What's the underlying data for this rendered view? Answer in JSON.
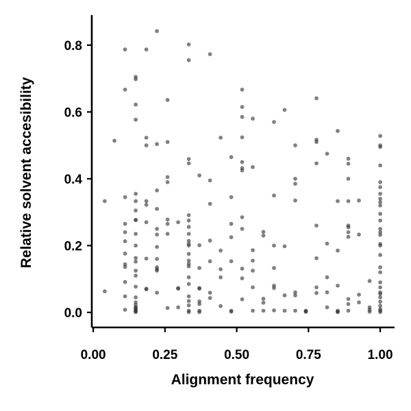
{
  "chart_data": {
    "type": "scatter",
    "title": "",
    "xlabel": "Alignment frequency",
    "ylabel": "Relative solvent accesibility",
    "xlim": [
      -0.005,
      1.05
    ],
    "ylim": [
      -0.045,
      0.89
    ],
    "xticks": [
      0.0,
      0.25,
      0.5,
      0.75,
      1.0
    ],
    "xtick_labels": [
      "0.00",
      "0.25",
      "0.50",
      "0.75",
      "1.00"
    ],
    "yticks": [
      0.0,
      0.2,
      0.4,
      0.6,
      0.8
    ],
    "ytick_labels": [
      "0.0",
      "0.2",
      "0.4",
      "0.6",
      "0.8"
    ],
    "grid": false,
    "legend": "none",
    "point_color": "#333333",
    "point_opacity": 0.62,
    "x": [
      0.04,
      0.04,
      0.074,
      0.111,
      0.111,
      0.111,
      0.111,
      0.111,
      0.111,
      0.111,
      0.111,
      0.111,
      0.111,
      0.111,
      0.111,
      0.148,
      0.148,
      0.148,
      0.148,
      0.148,
      0.148,
      0.148,
      0.148,
      0.148,
      0.148,
      0.148,
      0.148,
      0.148,
      0.148,
      0.148,
      0.148,
      0.148,
      0.148,
      0.148,
      0.148,
      0.148,
      0.148,
      0.148,
      0.148,
      0.148,
      0.185,
      0.185,
      0.185,
      0.185,
      0.185,
      0.185,
      0.185,
      0.185,
      0.185,
      0.222,
      0.222,
      0.222,
      0.222,
      0.222,
      0.222,
      0.222,
      0.222,
      0.222,
      0.222,
      0.222,
      0.222,
      0.259,
      0.259,
      0.259,
      0.259,
      0.259,
      0.259,
      0.259,
      0.259,
      0.296,
      0.296,
      0.296,
      0.296,
      0.333,
      0.333,
      0.333,
      0.333,
      0.333,
      0.333,
      0.333,
      0.333,
      0.333,
      0.333,
      0.333,
      0.333,
      0.333,
      0.333,
      0.333,
      0.333,
      0.333,
      0.333,
      0.333,
      0.333,
      0.333,
      0.333,
      0.37,
      0.37,
      0.37,
      0.37,
      0.37,
      0.37,
      0.37,
      0.37,
      0.37,
      0.407,
      0.407,
      0.407,
      0.407,
      0.407,
      0.407,
      0.407,
      0.444,
      0.444,
      0.444,
      0.444,
      0.444,
      0.481,
      0.481,
      0.481,
      0.481,
      0.481,
      0.481,
      0.481,
      0.519,
      0.519,
      0.519,
      0.519,
      0.519,
      0.519,
      0.519,
      0.519,
      0.519,
      0.519,
      0.519,
      0.519,
      0.556,
      0.556,
      0.556,
      0.556,
      0.556,
      0.556,
      0.556,
      0.593,
      0.593,
      0.593,
      0.593,
      0.593,
      0.63,
      0.63,
      0.63,
      0.63,
      0.63,
      0.63,
      0.63,
      0.667,
      0.667,
      0.667,
      0.667,
      0.704,
      0.704,
      0.704,
      0.704,
      0.704,
      0.704,
      0.704,
      0.741,
      0.741,
      0.741,
      0.778,
      0.778,
      0.778,
      0.778,
      0.778,
      0.778,
      0.778,
      0.778,
      0.815,
      0.815,
      0.815,
      0.815,
      0.815,
      0.852,
      0.852,
      0.852,
      0.852,
      0.852,
      0.852,
      0.852,
      0.889,
      0.889,
      0.889,
      0.889,
      0.889,
      0.889,
      0.889,
      0.889,
      0.889,
      0.889,
      0.889,
      0.926,
      0.926,
      0.926,
      0.926,
      0.963,
      0.963,
      0.963,
      0.963,
      1.0,
      1.0,
      1.0,
      1.0,
      1.0,
      1.0,
      1.0,
      1.0,
      1.0,
      1.0,
      1.0,
      1.0,
      1.0,
      1.0,
      1.0,
      1.0,
      1.0,
      1.0,
      1.0,
      1.0,
      1.0,
      1.0,
      1.0,
      1.0,
      1.0,
      1.0,
      1.0,
      1.0,
      1.0,
      1.0
    ],
    "y": [
      0.333,
      0.063,
      0.514,
      0.787,
      0.667,
      0.345,
      0.265,
      0.24,
      0.213,
      0.176,
      0.144,
      0.136,
      0.091,
      0.048,
      0.008,
      0.705,
      0.698,
      0.622,
      0.577,
      0.355,
      0.333,
      0.305,
      0.277,
      0.276,
      0.235,
      0.2,
      0.163,
      0.152,
      0.125,
      0.11,
      0.077,
      0.045,
      0.03,
      0.022,
      0.015,
      0.013,
      0.01,
      0.005,
      0.003,
      0.001,
      0.787,
      0.523,
      0.5,
      0.333,
      0.322,
      0.27,
      0.161,
      0.071,
      0.069,
      0.842,
      0.504,
      0.365,
      0.31,
      0.25,
      0.233,
      0.196,
      0.16,
      0.135,
      0.129,
      0.125,
      0.059,
      0.636,
      0.51,
      0.405,
      0.39,
      0.278,
      0.265,
      0.235,
      0.013,
      0.27,
      0.073,
      0.071,
      0.015,
      0.802,
      0.755,
      0.459,
      0.446,
      0.291,
      0.275,
      0.256,
      0.235,
      0.214,
      0.205,
      0.2,
      0.175,
      0.155,
      0.145,
      0.138,
      0.105,
      0.085,
      0.048,
      0.034,
      0.021,
      0.005,
      0.001,
      0.41,
      0.201,
      0.133,
      0.073,
      0.071,
      0.033,
      0.025,
      0.005,
      0.001,
      0.773,
      0.395,
      0.325,
      0.215,
      0.153,
      0.059,
      0.043,
      0.523,
      0.185,
      0.129,
      0.105,
      0.019,
      0.465,
      0.345,
      0.265,
      0.225,
      0.153,
      0.005,
      0.002,
      0.667,
      0.615,
      0.585,
      0.524,
      0.45,
      0.432,
      0.425,
      0.285,
      0.25,
      0.131,
      0.102,
      0.039,
      0.58,
      0.435,
      0.186,
      0.155,
      0.125,
      0.075,
      0.005,
      0.241,
      0.23,
      0.041,
      0.029,
      0.005,
      0.57,
      0.35,
      0.2,
      0.133,
      0.08,
      0.073,
      0.006,
      0.606,
      0.198,
      0.051,
      0.005,
      0.5,
      0.4,
      0.385,
      0.335,
      0.06,
      0.051,
      0.005,
      0.005,
      0.003,
      0.002,
      0.641,
      0.517,
      0.51,
      0.446,
      0.26,
      0.162,
      0.075,
      0.058,
      0.475,
      0.206,
      0.105,
      0.06,
      0.015,
      0.543,
      0.333,
      0.185,
      0.08,
      0.005,
      0.002,
      0.001,
      0.46,
      0.445,
      0.4,
      0.333,
      0.26,
      0.255,
      0.24,
      0.226,
      0.04,
      0.025,
      0.005,
      0.335,
      0.233,
      0.053,
      0.03,
      0.094,
      0.015,
      0.008,
      0.002,
      0.528,
      0.5,
      0.495,
      0.44,
      0.39,
      0.375,
      0.355,
      0.34,
      0.33,
      0.32,
      0.295,
      0.275,
      0.25,
      0.24,
      0.232,
      0.205,
      0.2,
      0.172,
      0.135,
      0.12,
      0.09,
      0.075,
      0.06,
      0.055,
      0.045,
      0.032,
      0.02,
      0.01,
      0.005,
      0.001
    ]
  }
}
